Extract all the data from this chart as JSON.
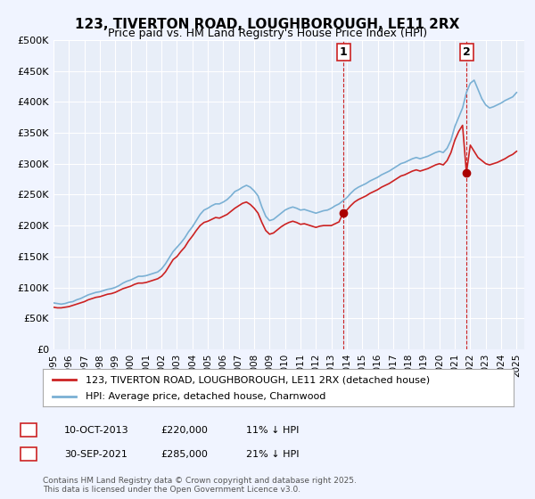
{
  "title": "123, TIVERTON ROAD, LOUGHBOROUGH, LE11 2RX",
  "subtitle": "Price paid vs. HM Land Registry's House Price Index (HPI)",
  "bg_color": "#f0f4ff",
  "plot_bg_color": "#e8eef8",
  "grid_color": "#ffffff",
  "ylim": [
    0,
    500000
  ],
  "yticks": [
    0,
    50000,
    100000,
    150000,
    200000,
    250000,
    300000,
    350000,
    400000,
    450000,
    500000
  ],
  "ytick_labels": [
    "£0",
    "£50K",
    "£100K",
    "£150K",
    "£200K",
    "£250K",
    "£300K",
    "£350K",
    "£400K",
    "£450K",
    "£500K"
  ],
  "xlim_start": 1995.0,
  "xlim_end": 2025.5,
  "xticks": [
    1995,
    1996,
    1997,
    1998,
    1999,
    2000,
    2001,
    2002,
    2003,
    2004,
    2005,
    2006,
    2007,
    2008,
    2009,
    2010,
    2011,
    2012,
    2013,
    2014,
    2015,
    2016,
    2017,
    2018,
    2019,
    2020,
    2021,
    2022,
    2023,
    2024,
    2025
  ],
  "hpi_color": "#7ab0d4",
  "price_color": "#cc2222",
  "marker_color": "#aa0000",
  "vline_color": "#cc2222",
  "sale1_x": 2013.78,
  "sale1_y": 220000,
  "sale2_x": 2021.75,
  "sale2_y": 285000,
  "legend_label_price": "123, TIVERTON ROAD, LOUGHBOROUGH, LE11 2RX (detached house)",
  "legend_label_hpi": "HPI: Average price, detached house, Charnwood",
  "annotation1_label": "1",
  "annotation2_label": "2",
  "table_row1": [
    "1",
    "10-OCT-2013",
    "£220,000",
    "11% ↓ HPI"
  ],
  "table_row2": [
    "2",
    "30-SEP-2021",
    "£285,000",
    "21% ↓ HPI"
  ],
  "footer": "Contains HM Land Registry data © Crown copyright and database right 2025.\nThis data is licensed under the Open Government Licence v3.0.",
  "hpi_data": {
    "years": [
      1995.0,
      1995.25,
      1995.5,
      1995.75,
      1996.0,
      1996.25,
      1996.5,
      1996.75,
      1997.0,
      1997.25,
      1997.5,
      1997.75,
      1998.0,
      1998.25,
      1998.5,
      1998.75,
      1999.0,
      1999.25,
      1999.5,
      1999.75,
      2000.0,
      2000.25,
      2000.5,
      2000.75,
      2001.0,
      2001.25,
      2001.5,
      2001.75,
      2002.0,
      2002.25,
      2002.5,
      2002.75,
      2003.0,
      2003.25,
      2003.5,
      2003.75,
      2004.0,
      2004.25,
      2004.5,
      2004.75,
      2005.0,
      2005.25,
      2005.5,
      2005.75,
      2006.0,
      2006.25,
      2006.5,
      2006.75,
      2007.0,
      2007.25,
      2007.5,
      2007.75,
      2008.0,
      2008.25,
      2008.5,
      2008.75,
      2009.0,
      2009.25,
      2009.5,
      2009.75,
      2010.0,
      2010.25,
      2010.5,
      2010.75,
      2011.0,
      2011.25,
      2011.5,
      2011.75,
      2012.0,
      2012.25,
      2012.5,
      2012.75,
      2013.0,
      2013.25,
      2013.5,
      2013.75,
      2014.0,
      2014.25,
      2014.5,
      2014.75,
      2015.0,
      2015.25,
      2015.5,
      2015.75,
      2016.0,
      2016.25,
      2016.5,
      2016.75,
      2017.0,
      2017.25,
      2017.5,
      2017.75,
      2018.0,
      2018.25,
      2018.5,
      2018.75,
      2019.0,
      2019.25,
      2019.5,
      2019.75,
      2020.0,
      2020.25,
      2020.5,
      2020.75,
      2021.0,
      2021.25,
      2021.5,
      2021.75,
      2022.0,
      2022.25,
      2022.5,
      2022.75,
      2023.0,
      2023.25,
      2023.5,
      2023.75,
      2024.0,
      2024.25,
      2024.5,
      2024.75,
      2025.0
    ],
    "values": [
      75000,
      74000,
      73000,
      74000,
      76000,
      77000,
      80000,
      82000,
      85000,
      88000,
      90000,
      92000,
      93000,
      95000,
      97000,
      98000,
      100000,
      103000,
      107000,
      110000,
      112000,
      115000,
      118000,
      118000,
      119000,
      121000,
      123000,
      125000,
      130000,
      138000,
      148000,
      158000,
      165000,
      172000,
      180000,
      190000,
      198000,
      208000,
      218000,
      225000,
      228000,
      232000,
      235000,
      235000,
      238000,
      242000,
      248000,
      255000,
      258000,
      262000,
      265000,
      262000,
      256000,
      248000,
      230000,
      215000,
      208000,
      210000,
      215000,
      220000,
      225000,
      228000,
      230000,
      228000,
      225000,
      226000,
      224000,
      222000,
      220000,
      222000,
      224000,
      225000,
      228000,
      232000,
      235000,
      240000,
      245000,
      252000,
      258000,
      262000,
      265000,
      268000,
      272000,
      275000,
      278000,
      282000,
      285000,
      288000,
      292000,
      296000,
      300000,
      302000,
      305000,
      308000,
      310000,
      308000,
      310000,
      312000,
      315000,
      318000,
      320000,
      318000,
      325000,
      338000,
      360000,
      375000,
      390000,
      415000,
      430000,
      435000,
      420000,
      405000,
      395000,
      390000,
      392000,
      395000,
      398000,
      402000,
      405000,
      408000,
      415000
    ]
  },
  "price_data": {
    "years": [
      1995.0,
      1995.25,
      1995.5,
      1995.75,
      1996.0,
      1996.25,
      1996.5,
      1996.75,
      1997.0,
      1997.25,
      1997.5,
      1997.75,
      1998.0,
      1998.25,
      1998.5,
      1998.75,
      1999.0,
      1999.25,
      1999.5,
      1999.75,
      2000.0,
      2000.25,
      2000.5,
      2000.75,
      2001.0,
      2001.25,
      2001.5,
      2001.75,
      2002.0,
      2002.25,
      2002.5,
      2002.75,
      2003.0,
      2003.25,
      2003.5,
      2003.75,
      2004.0,
      2004.25,
      2004.5,
      2004.75,
      2005.0,
      2005.25,
      2005.5,
      2005.75,
      2006.0,
      2006.25,
      2006.5,
      2006.75,
      2007.0,
      2007.25,
      2007.5,
      2007.75,
      2008.0,
      2008.25,
      2008.5,
      2008.75,
      2009.0,
      2009.25,
      2009.5,
      2009.75,
      2010.0,
      2010.25,
      2010.5,
      2010.75,
      2011.0,
      2011.25,
      2011.5,
      2011.75,
      2012.0,
      2012.25,
      2012.5,
      2012.75,
      2013.0,
      2013.25,
      2013.5,
      2013.75,
      2014.0,
      2014.25,
      2014.5,
      2014.75,
      2015.0,
      2015.25,
      2015.5,
      2015.75,
      2016.0,
      2016.25,
      2016.5,
      2016.75,
      2017.0,
      2017.25,
      2017.5,
      2017.75,
      2018.0,
      2018.25,
      2018.5,
      2018.75,
      2019.0,
      2019.25,
      2019.5,
      2019.75,
      2020.0,
      2020.25,
      2020.5,
      2020.75,
      2021.0,
      2021.25,
      2021.5,
      2021.75,
      2022.0,
      2022.25,
      2022.5,
      2022.75,
      2023.0,
      2023.25,
      2023.5,
      2023.75,
      2024.0,
      2024.25,
      2024.5,
      2024.75,
      2025.0
    ],
    "values": [
      68000,
      67000,
      67000,
      68000,
      69000,
      71000,
      73000,
      75000,
      77000,
      80000,
      82000,
      84000,
      85000,
      87000,
      89000,
      90000,
      92000,
      95000,
      98000,
      100000,
      102000,
      105000,
      107000,
      107000,
      108000,
      110000,
      112000,
      114000,
      118000,
      125000,
      135000,
      145000,
      150000,
      158000,
      165000,
      175000,
      183000,
      192000,
      200000,
      205000,
      207000,
      210000,
      213000,
      212000,
      215000,
      218000,
      223000,
      228000,
      232000,
      236000,
      238000,
      234000,
      228000,
      220000,
      205000,
      192000,
      186000,
      188000,
      193000,
      198000,
      202000,
      205000,
      207000,
      205000,
      202000,
      203000,
      201000,
      199000,
      197000,
      199000,
      200000,
      200000,
      200000,
      203000,
      206000,
      220000,
      225000,
      232000,
      238000,
      242000,
      245000,
      248000,
      252000,
      255000,
      258000,
      262000,
      265000,
      268000,
      272000,
      276000,
      280000,
      282000,
      285000,
      288000,
      290000,
      288000,
      290000,
      292000,
      295000,
      298000,
      300000,
      298000,
      305000,
      318000,
      338000,
      352000,
      362000,
      285000,
      330000,
      320000,
      310000,
      305000,
      300000,
      298000,
      300000,
      302000,
      305000,
      308000,
      312000,
      315000,
      320000
    ]
  }
}
